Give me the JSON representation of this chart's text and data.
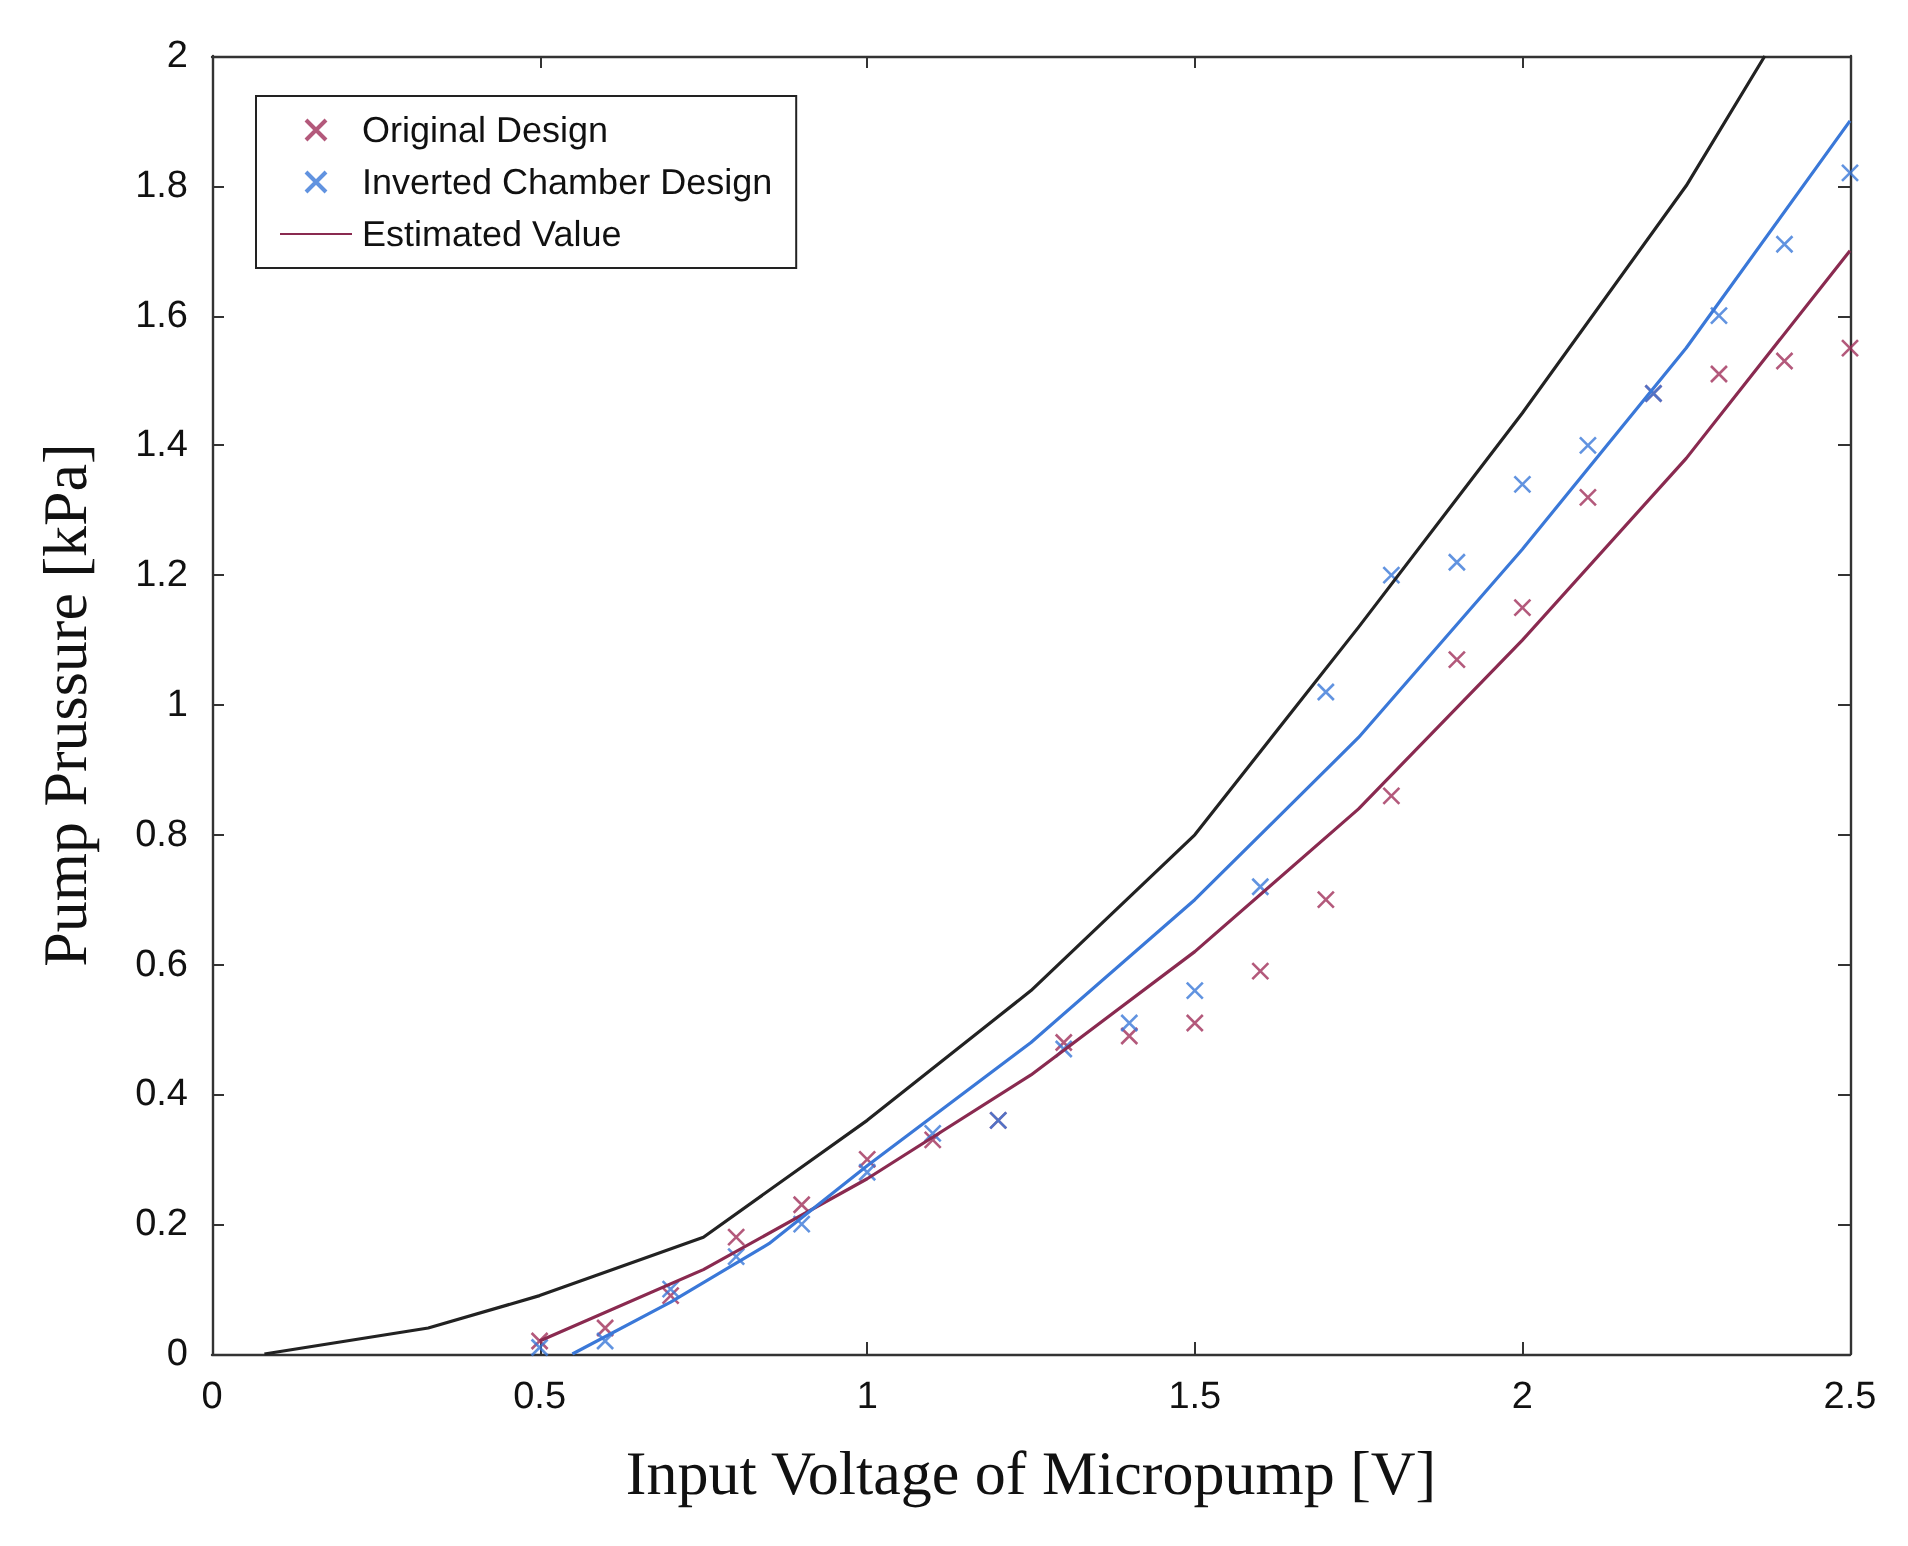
{
  "chart_data": {
    "type": "scatter",
    "xlabel": "Input Voltage of Micropump [V]",
    "ylabel": "Pump Prussure [kPa]",
    "xlim": [
      0,
      2.5
    ],
    "ylim": [
      0,
      2
    ],
    "xticks": [
      0,
      0.5,
      1,
      1.5,
      2,
      2.5
    ],
    "yticks": [
      0,
      0.2,
      0.4,
      0.6,
      0.8,
      1,
      1.2,
      1.4,
      1.6,
      1.8,
      2
    ],
    "grid": false,
    "legend": "top left",
    "marker": "cross",
    "x": [
      0.5,
      0.6,
      0.7,
      0.8,
      0.9,
      1.0,
      1.1,
      1.2,
      1.3,
      1.4,
      1.5,
      1.6,
      1.7,
      1.8,
      1.9,
      2.0,
      2.1,
      2.2,
      2.3,
      2.4,
      2.5
    ],
    "series": [
      {
        "name": "Original Design",
        "color": "#a0305a",
        "values": [
          0.02,
          0.04,
          0.09,
          0.18,
          0.23,
          0.3,
          0.33,
          0.36,
          0.48,
          0.49,
          0.51,
          0.59,
          0.7,
          0.86,
          1.07,
          1.15,
          1.32,
          1.48,
          1.51,
          1.53,
          1.55
        ]
      },
      {
        "name": "Inverted Chamber Design",
        "color": "#3a78d8",
        "values": [
          0.01,
          0.02,
          0.1,
          0.15,
          0.2,
          0.28,
          0.34,
          0.36,
          0.47,
          0.51,
          0.56,
          0.72,
          1.02,
          1.2,
          1.22,
          1.34,
          1.4,
          1.48,
          1.6,
          1.71,
          1.82
        ]
      },
      {
        "name": "Estimated Value",
        "type": "line",
        "marker": "none",
        "color": "#8a2a50",
        "x": [
          0.5,
          0.75,
          1.0,
          1.25,
          1.5,
          1.75,
          2.0,
          2.25,
          2.5
        ],
        "values": [
          0.02,
          0.13,
          0.27,
          0.43,
          0.62,
          0.84,
          1.1,
          1.38,
          1.7
        ]
      },
      {
        "type": "line",
        "marker": "none",
        "color": "#3a78d8",
        "x": [
          0.55,
          0.7,
          0.85,
          1.0,
          1.25,
          1.5,
          1.75,
          2.0,
          2.25,
          2.5
        ],
        "values": [
          0,
          0.08,
          0.17,
          0.29,
          0.48,
          0.7,
          0.95,
          1.24,
          1.55,
          1.9
        ]
      },
      {
        "type": "line",
        "marker": "none",
        "color": "#222222",
        "x": [
          0.08,
          0.33,
          0.5,
          0.75,
          1.0,
          1.25,
          1.5,
          1.75,
          2.0,
          2.25,
          2.37
        ],
        "values": [
          0,
          0.04,
          0.09,
          0.18,
          0.36,
          0.56,
          0.8,
          1.12,
          1.45,
          1.8,
          2.0
        ]
      }
    ]
  }
}
